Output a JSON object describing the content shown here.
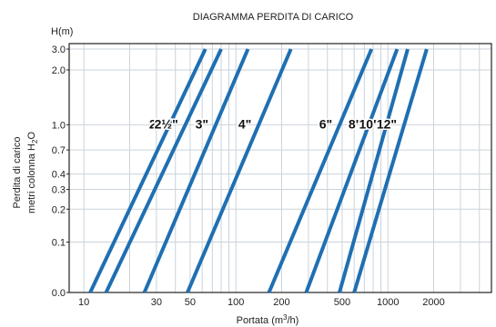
{
  "chart_data": {
    "type": "line",
    "title": "DIAGRAMMA PERDITA DI CARICO",
    "ylabel_top": "H(m)",
    "ylabel_line1": "Perdita di carico",
    "ylabel_line2_main": "metri colonna H",
    "ylabel_line2_sub": "2",
    "ylabel_line2_end": "O",
    "xlabel_main": "Portata (m",
    "xlabel_sup": "3",
    "xlabel_end": "/h)",
    "x_ticks": [
      "10",
      "30",
      "50",
      "100",
      "200",
      "500",
      "1000",
      "2000"
    ],
    "y_ticks": [
      "3.0",
      "2.0",
      "1.0",
      "0.7",
      "0.4",
      "0.3",
      "0.2",
      "0.1",
      "0.0"
    ],
    "grid": true,
    "series": [
      {
        "name": "2\"",
        "x": [
          11,
          63
        ],
        "y": [
          0.0,
          3.0
        ]
      },
      {
        "name": "2½\"",
        "x": [
          14,
          80
        ],
        "y": [
          0.0,
          3.0
        ]
      },
      {
        "name": "3\"",
        "x": [
          25,
          120
        ],
        "y": [
          0.0,
          3.0
        ]
      },
      {
        "name": "4\"",
        "x": [
          48,
          230
        ],
        "y": [
          0.0,
          3.0
        ]
      },
      {
        "name": "6\"",
        "x": [
          165,
          780
        ],
        "y": [
          0.0,
          3.0
        ]
      },
      {
        "name": "8\"",
        "x": [
          290,
          1150
        ],
        "y": [
          0.0,
          3.0
        ]
      },
      {
        "name": "10\"",
        "x": [
          480,
          1350
        ],
        "y": [
          0.0,
          3.0
        ]
      },
      {
        "name": "12\"",
        "x": [
          600,
          1800
        ],
        "y": [
          0.0,
          3.0
        ]
      }
    ],
    "colors": {
      "line": "#1f6fb2",
      "grid": "#c9d3dc",
      "axis": "#222222"
    }
  }
}
